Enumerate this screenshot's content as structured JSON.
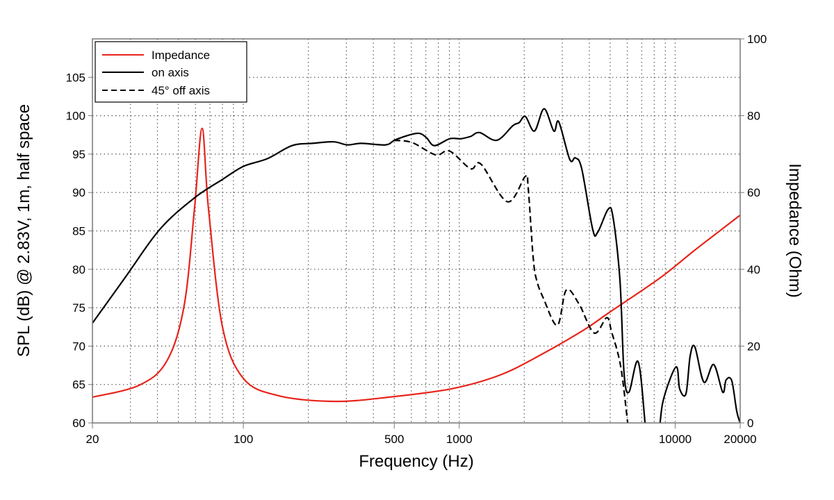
{
  "chart_data": {
    "type": "line",
    "title": "",
    "xlabel": "Frequency (Hz)",
    "ylabel": "SPL (dB) @ 2.83V, 1m, half space",
    "y2label": "Impedance (Ohm)",
    "xscale": "log",
    "xlim": [
      20,
      20000
    ],
    "ylim": [
      60,
      110
    ],
    "y2lim": [
      0,
      100
    ],
    "grid": true,
    "legend_position": "top-left",
    "x_ticks": [
      20,
      100,
      500,
      1000,
      10000,
      20000
    ],
    "x_tick_labels": [
      "20",
      "100",
      "500",
      "1000",
      "10000",
      "20000"
    ],
    "y_ticks": [
      60,
      65,
      70,
      75,
      80,
      85,
      90,
      95,
      100,
      105
    ],
    "y_tick_labels": [
      "60",
      "65",
      "70",
      "75",
      "80",
      "85",
      "90",
      "95",
      "100",
      "105"
    ],
    "y2_ticks": [
      0,
      20,
      40,
      60,
      80,
      100
    ],
    "y2_tick_labels": [
      "0",
      "20",
      "40",
      "60",
      "80",
      "100"
    ],
    "series": [
      {
        "name": "Impedance",
        "axis": "right",
        "color": "#e8231a",
        "style": "solid",
        "x": [
          20,
          32.9,
          44.2,
          53.2,
          59.4,
          64.4,
          68.9,
          80,
          100,
          145,
          262,
          473,
          923,
          1550,
          2416,
          3775,
          4966,
          8531,
          12331,
          20000
        ],
        "y": [
          6.7,
          9.8,
          16.1,
          30.6,
          55.9,
          76.7,
          55.9,
          25.1,
          11.6,
          7.1,
          5.6,
          6.7,
          8.9,
          12.5,
          17.9,
          24.2,
          28.8,
          37.8,
          45.0,
          54.1
        ]
      },
      {
        "name": "on axis",
        "axis": "left",
        "color": "#000000",
        "style": "solid",
        "x": [
          20,
          28.3,
          41,
          59.4,
          80,
          100,
          129,
          168,
          209,
          262,
          303,
          352,
          456,
          509,
          637,
          701,
          767,
          902,
          1016,
          1128,
          1242,
          1493,
          1770,
          1894,
          2024,
          2230,
          2472,
          2742,
          2889,
          3250,
          3452,
          3690,
          4150,
          4375,
          4889,
          5153,
          5549,
          5795,
          6107,
          6729,
          7240,
          7600,
          8200,
          8531,
          8979,
          10116,
          10497,
          11221,
          11728,
          12331,
          13590,
          15078,
          16600,
          17220,
          18280,
          19280,
          20000
        ],
        "y": [
          73.0,
          78.9,
          85.2,
          89.3,
          91.7,
          93.4,
          94.4,
          96.1,
          96.4,
          96.6,
          96.2,
          96.4,
          96.2,
          96.9,
          97.7,
          97.2,
          96.1,
          97.0,
          97.0,
          97.3,
          97.8,
          96.8,
          98.7,
          99.1,
          99.9,
          98.0,
          100.9,
          98.0,
          99.2,
          94.3,
          94.5,
          93.1,
          85.2,
          84.8,
          87.8,
          86.8,
          78.6,
          66.5,
          64.0,
          68.0,
          60.2,
          52,
          52,
          60.2,
          63.8,
          67.3,
          64.4,
          63.8,
          68.7,
          69.9,
          65.3,
          67.6,
          64.0,
          65.6,
          65.5,
          61.5,
          60.0
        ]
      },
      {
        "name": "45° off axis",
        "axis": "left",
        "color": "#000000",
        "style": "dashed",
        "x": [
          499,
          605,
          778,
          902,
          1128,
          1260,
          1670,
          2024,
          2085,
          2198,
          2281,
          2455,
          2846,
          3131,
          3582,
          4216,
          4820,
          5073,
          5589,
          6013,
          6300
        ],
        "y": [
          96.8,
          96.5,
          94.9,
          95.4,
          93.1,
          93.7,
          88.8,
          92.1,
          90.7,
          81.6,
          78.6,
          76.2,
          72.7,
          77.3,
          75.5,
          71.7,
          73.7,
          71.9,
          67.4,
          60.2,
          55
        ]
      }
    ]
  }
}
